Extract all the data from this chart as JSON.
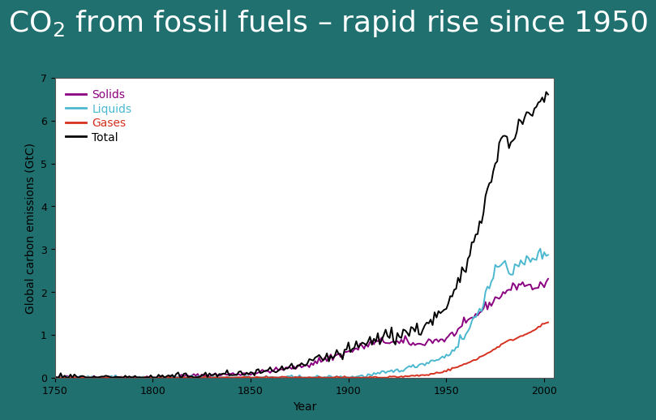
{
  "title": "CO₂ from fossil fuels – rapid rise since 1950",
  "title_color": "#ffffff",
  "background_color": "#217070",
  "plot_bg_color": "#ffffff",
  "frame_color": "#cccccc",
  "xlabel": "Year",
  "ylabel": "Global carbon emissions (GtC)",
  "xlim": [
    1750,
    2005
  ],
  "ylim": [
    0,
    7
  ],
  "yticks": [
    0,
    1,
    2,
    3,
    4,
    5,
    6,
    7
  ],
  "xticks": [
    1750,
    1800,
    1850,
    1900,
    1950,
    2000
  ],
  "legend_labels": [
    "Solids",
    "Liquids",
    "Gases",
    "Total"
  ],
  "legend_colors": [
    "#8b0080",
    "#4bb8d0",
    "#d63020",
    "#000000"
  ],
  "title_fontsize": 26,
  "axis_fontsize": 10,
  "tick_fontsize": 9,
  "legend_fontsize": 10,
  "title_weight": "normal"
}
